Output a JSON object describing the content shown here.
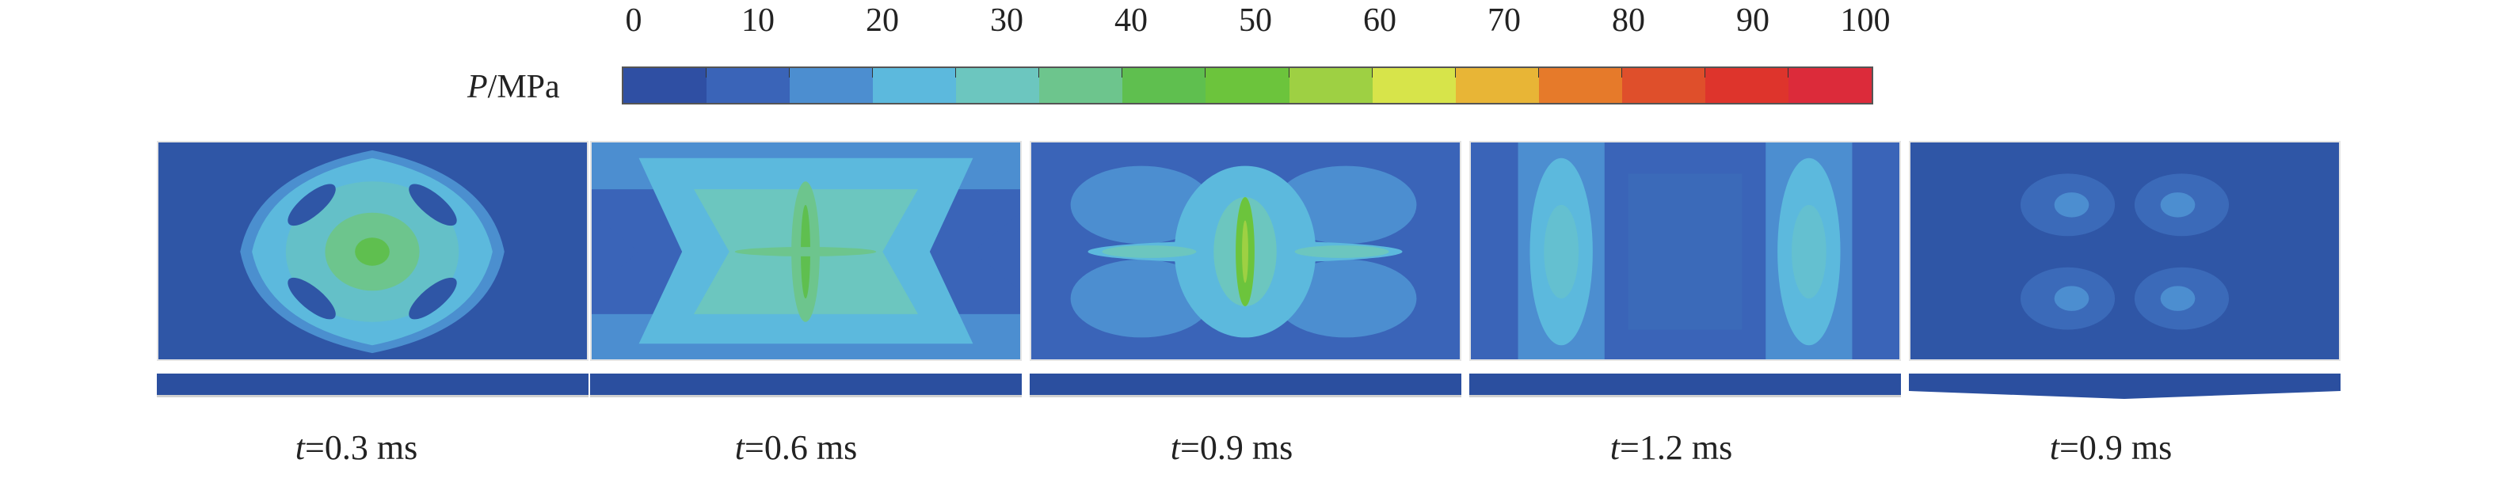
{
  "scale": {
    "label_var": "P",
    "label_unit": "/MPa",
    "tick_labels": [
      "0",
      "10",
      "20",
      "30",
      "40",
      "50",
      "60",
      "70",
      "80",
      "90",
      "100"
    ],
    "colors": [
      "#2f4fa3",
      "#3a64b8",
      "#4c8ed0",
      "#5cb9dd",
      "#6cc6bf",
      "#6dc58d",
      "#5fbf4f",
      "#6cc43c",
      "#9ed043",
      "#d7e44a",
      "#e8b536",
      "#e67a2a",
      "#df4f2b",
      "#de342c",
      "#dc2b3a"
    ]
  },
  "panels": [
    {
      "t_var": "t",
      "t_value": "=0.3 ms"
    },
    {
      "t_var": "t",
      "t_value": "=0.6 ms"
    },
    {
      "t_var": "t",
      "t_value": "=0.9 ms"
    },
    {
      "t_var": "t",
      "t_value": "=1.2 ms"
    },
    {
      "t_var": "t",
      "t_value": "=0.9 ms"
    }
  ]
}
